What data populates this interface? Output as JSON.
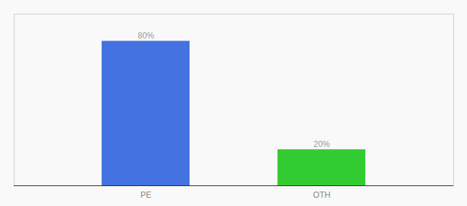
{
  "chart_data": {
    "type": "bar",
    "categories": [
      "PE",
      "OTH"
    ],
    "values": [
      80,
      20
    ],
    "value_labels": [
      "80%",
      "20%"
    ],
    "colors": [
      "#4472e0",
      "#33cc33"
    ],
    "ylim": [
      0,
      95
    ],
    "data_labels": true,
    "tick_labels": "x"
  }
}
